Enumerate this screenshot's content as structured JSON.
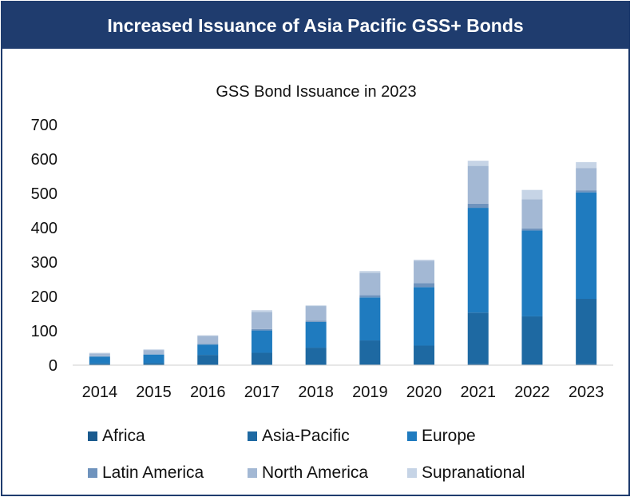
{
  "banner": {
    "title": "Increased Issuance of Asia Pacific GSS+ Bonds"
  },
  "colors": {
    "Africa": "#1a5a8e",
    "Asia-Pacific": "#1e69a2",
    "Europe": "#1f7bbf",
    "Latin America": "#6f93bd",
    "North America": "#a3b8d4",
    "Supranational": "#c6d4e6"
  },
  "chart_data": {
    "type": "bar",
    "stacked": true,
    "title": "GSS Bond Issuance in 2023",
    "xlabel": "",
    "ylabel": "",
    "ylim": [
      0,
      700
    ],
    "yticks": [
      0,
      100,
      200,
      300,
      400,
      500,
      600,
      700
    ],
    "grid": false,
    "legend_position": "bottom",
    "categories": [
      "2014",
      "2015",
      "2016",
      "2017",
      "2018",
      "2019",
      "2020",
      "2021",
      "2022",
      "2023"
    ],
    "series": [
      {
        "name": "Africa",
        "values": [
          0,
          0,
          1,
          1,
          1,
          2,
          2,
          3,
          2,
          3
        ]
      },
      {
        "name": "Asia-Pacific",
        "values": [
          5,
          6,
          29,
          35,
          50,
          70,
          55,
          150,
          140,
          190
        ]
      },
      {
        "name": "Europe",
        "values": [
          20,
          25,
          30,
          65,
          75,
          125,
          170,
          305,
          250,
          310
        ]
      },
      {
        "name": "Latin America",
        "values": [
          1,
          1,
          2,
          4,
          3,
          7,
          12,
          12,
          6,
          6
        ]
      },
      {
        "name": "North America",
        "values": [
          8,
          12,
          23,
          50,
          43,
          65,
          65,
          110,
          85,
          65
        ]
      },
      {
        "name": "Supranational",
        "values": [
          2,
          2,
          2,
          5,
          2,
          5,
          3,
          15,
          27,
          17
        ]
      }
    ]
  }
}
